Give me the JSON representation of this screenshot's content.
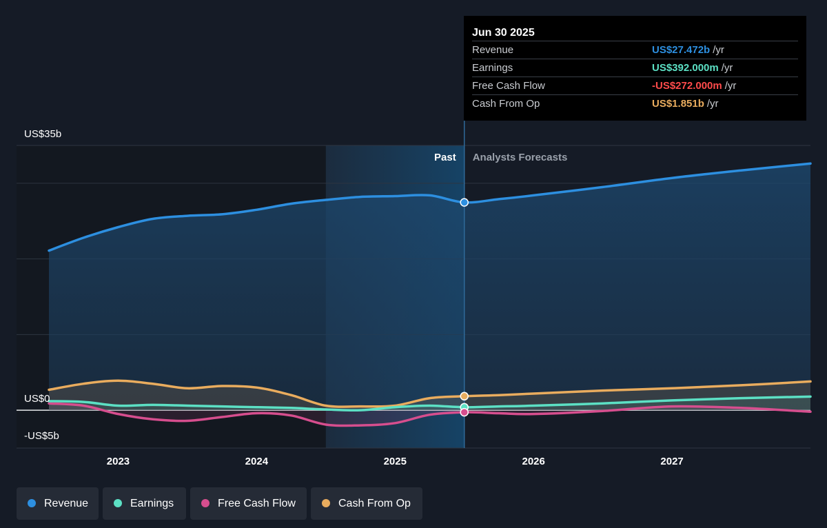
{
  "chart_data": {
    "type": "line",
    "y_unit": "US$ billions",
    "ylim": [
      -5,
      35
    ],
    "y_tick_labels": [
      {
        "value": 35,
        "label": "US$35b"
      },
      {
        "value": 0,
        "label": "US$0"
      },
      {
        "value": -5,
        "label": "-US$5b"
      }
    ],
    "gridlines": [
      35,
      30,
      20,
      10,
      0,
      -5
    ],
    "xlim": [
      2022.5,
      2028.0
    ],
    "x_ticks": [
      "2023",
      "2024",
      "2025",
      "2026",
      "2027"
    ],
    "past_label": "Past",
    "forecast_label": "Analysts Forecasts",
    "divider_x": 2025.5,
    "shade_start_x": 2024.5,
    "series": [
      {
        "name": "Revenue",
        "color": "#2d8fe0",
        "x": [
          2022.5,
          2022.75,
          2023.0,
          2023.25,
          2023.5,
          2023.75,
          2024.0,
          2024.25,
          2024.5,
          2024.75,
          2025.0,
          2025.25,
          2025.5,
          2025.75,
          2026.0,
          2026.5,
          2027.0,
          2027.5,
          2028.0
        ],
        "values": [
          21.1,
          22.8,
          24.2,
          25.3,
          25.7,
          25.9,
          26.5,
          27.3,
          27.8,
          28.2,
          28.3,
          28.4,
          27.472,
          27.9,
          28.4,
          29.5,
          30.7,
          31.7,
          32.6
        ]
      },
      {
        "name": "Earnings",
        "color": "#5ce0c4",
        "x": [
          2022.5,
          2022.75,
          2023.0,
          2023.25,
          2023.5,
          2023.75,
          2024.0,
          2024.25,
          2024.5,
          2024.75,
          2025.0,
          2025.25,
          2025.5,
          2025.75,
          2026.0,
          2026.5,
          2027.0,
          2027.5,
          2028.0
        ],
        "values": [
          1.2,
          1.1,
          0.6,
          0.7,
          0.6,
          0.5,
          0.4,
          0.3,
          0.1,
          0.0,
          0.4,
          0.6,
          0.392,
          0.5,
          0.6,
          0.9,
          1.3,
          1.6,
          1.8
        ]
      },
      {
        "name": "Free Cash Flow",
        "color": "#d64e8e",
        "x": [
          2022.5,
          2022.75,
          2023.0,
          2023.25,
          2023.5,
          2023.75,
          2024.0,
          2024.25,
          2024.5,
          2024.75,
          2025.0,
          2025.25,
          2025.5,
          2025.75,
          2026.0,
          2026.5,
          2027.0,
          2027.5,
          2028.0
        ],
        "values": [
          0.9,
          0.6,
          -0.5,
          -1.2,
          -1.4,
          -0.9,
          -0.4,
          -0.7,
          -1.9,
          -2.0,
          -1.7,
          -0.6,
          -0.272,
          -0.4,
          -0.5,
          -0.1,
          0.5,
          0.3,
          -0.2
        ]
      },
      {
        "name": "Cash From Op",
        "color": "#e9ac5e",
        "x": [
          2022.5,
          2022.75,
          2023.0,
          2023.25,
          2023.5,
          2023.75,
          2024.0,
          2024.25,
          2024.5,
          2024.75,
          2025.0,
          2025.25,
          2025.5,
          2025.75,
          2026.0,
          2026.5,
          2027.0,
          2027.5,
          2028.0
        ],
        "values": [
          2.7,
          3.5,
          3.9,
          3.5,
          2.9,
          3.2,
          3.0,
          2.0,
          0.6,
          0.5,
          0.6,
          1.6,
          1.851,
          2.0,
          2.2,
          2.6,
          2.9,
          3.3,
          3.8
        ]
      }
    ]
  },
  "tooltip": {
    "title": "Jun 30 2025",
    "rows": [
      {
        "label": "Revenue",
        "value": "US$27.472b",
        "unit": "/yr",
        "color": "#2d8fe0"
      },
      {
        "label": "Earnings",
        "value": "US$392.000m",
        "unit": "/yr",
        "color": "#5ce0c4"
      },
      {
        "label": "Free Cash Flow",
        "value": "-US$272.000m",
        "unit": "/yr",
        "color": "#ff4b4b"
      },
      {
        "label": "Cash From Op",
        "value": "US$1.851b",
        "unit": "/yr",
        "color": "#e9ac5e"
      }
    ]
  },
  "legend": {
    "items": [
      {
        "label": "Revenue",
        "color": "#2d8fe0"
      },
      {
        "label": "Earnings",
        "color": "#5ce0c4"
      },
      {
        "label": "Free Cash Flow",
        "color": "#d64e8e"
      },
      {
        "label": "Cash From Op",
        "color": "#e9ac5e"
      }
    ]
  }
}
